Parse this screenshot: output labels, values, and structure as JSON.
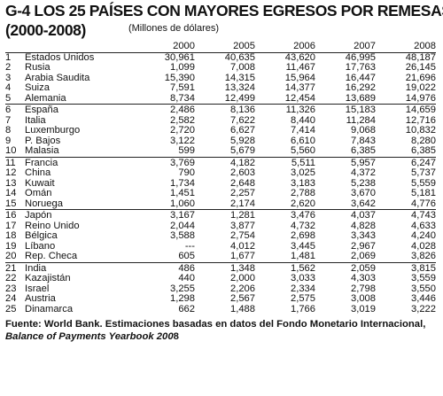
{
  "title_line1": "G-4 LOS 25 PAÍSES CON MAYORES EGRESOS POR REMESAS",
  "title_line2": "(2000-2008)",
  "unit_note": "(Millones de dólares)",
  "years": [
    "2000",
    "2005",
    "2006",
    "2007",
    "2008"
  ],
  "rows": [
    {
      "rank": "1",
      "country": "Estados Unidos",
      "values": [
        "30,961",
        "40,635",
        "43,620",
        "46,995",
        "48,187"
      ]
    },
    {
      "rank": "2",
      "country": "Rusia",
      "values": [
        "1,099",
        "7,008",
        "11,467",
        "17,763",
        "26,145"
      ]
    },
    {
      "rank": "3",
      "country": "Arabia Saudita",
      "values": [
        "15,390",
        "14,315",
        "15,964",
        "16,447",
        "21,696"
      ]
    },
    {
      "rank": "4",
      "country": "Suiza",
      "values": [
        "7,591",
        "13,324",
        "14,377",
        "16,292",
        "19,022"
      ]
    },
    {
      "rank": "5",
      "country": "Alemania",
      "values": [
        "8,734",
        "12,499",
        "12,454",
        "13,689",
        "14,976"
      ]
    },
    {
      "rank": "6",
      "country": "España",
      "values": [
        "2,486",
        "8,136",
        "11,326",
        "15,183",
        "14,659"
      ]
    },
    {
      "rank": "7",
      "country": "Italia",
      "values": [
        "2,582",
        "7,622",
        "8,440",
        "11,284",
        "12,716"
      ]
    },
    {
      "rank": "8",
      "country": "Luxemburgo",
      "values": [
        "2,720",
        "6,627",
        "7,414",
        "9,068",
        "10,832"
      ]
    },
    {
      "rank": "9",
      "country": "P. Bajos",
      "values": [
        "3,122",
        "5,928",
        "6,610",
        "7,843",
        "8,280"
      ]
    },
    {
      "rank": "10",
      "country": "Malasia",
      "values": [
        "599",
        "5,679",
        "5,560",
        "6,385",
        "6,385"
      ]
    },
    {
      "rank": "11",
      "country": "Francia",
      "values": [
        "3,769",
        "4,182",
        "5,511",
        "5,957",
        "6,247"
      ]
    },
    {
      "rank": "12",
      "country": "China",
      "values": [
        "790",
        "2,603",
        "3,025",
        "4,372",
        "5,737"
      ]
    },
    {
      "rank": "13",
      "country": "Kuwait",
      "values": [
        "1,734",
        "2,648",
        "3,183",
        "5,238",
        "5,559"
      ]
    },
    {
      "rank": "14",
      "country": "Omán",
      "values": [
        "1,451",
        "2,257",
        "2,788",
        "3,670",
        "5,181"
      ]
    },
    {
      "rank": "15",
      "country": "Noruega",
      "values": [
        "1,060",
        "2,174",
        "2,620",
        "3,642",
        "4,776"
      ]
    },
    {
      "rank": "16",
      "country": "Japón",
      "values": [
        "3,167",
        "1,281",
        "3,476",
        "4,037",
        "4,743"
      ]
    },
    {
      "rank": "17",
      "country": "Reino Unido",
      "values": [
        "2,044",
        "3,877",
        "4,732",
        "4,828",
        "4,633"
      ]
    },
    {
      "rank": "18",
      "country": "Bélgica",
      "values": [
        "3,588",
        "2,754",
        "2,698",
        "3,343",
        "4,240"
      ]
    },
    {
      "rank": "19",
      "country": "Líbano",
      "values": [
        "---",
        "4,012",
        "3,445",
        "2,967",
        "4,028"
      ]
    },
    {
      "rank": "20",
      "country": "Rep. Checa",
      "values": [
        "605",
        "1,677",
        "1,481",
        "2,069",
        "3,826"
      ]
    },
    {
      "rank": "21",
      "country": "India",
      "values": [
        "486",
        "1,348",
        "1,562",
        "2,059",
        "3,815"
      ]
    },
    {
      "rank": "22",
      "country": "Kazajistán",
      "values": [
        "440",
        "2,000",
        "3,033",
        "4,303",
        "3,559"
      ]
    },
    {
      "rank": "23",
      "country": "Israel",
      "values": [
        "3,255",
        "2,206",
        "2,334",
        "2,798",
        "3,550"
      ]
    },
    {
      "rank": "24",
      "country": "Austria",
      "values": [
        "1,298",
        "2,567",
        "2,575",
        "3,008",
        "3,446"
      ]
    },
    {
      "rank": "25",
      "country": "Dinamarca",
      "values": [
        "662",
        "1,488",
        "1,766",
        "3,019",
        "3,222"
      ]
    }
  ],
  "footer_line1": "Fuente: World Bank. Estimaciones basadas en datos del Fondo Monetario Internacional,",
  "footer_line2_italic": "Balance of Payments Yearbook 200",
  "footer_line2_plain": "8"
}
